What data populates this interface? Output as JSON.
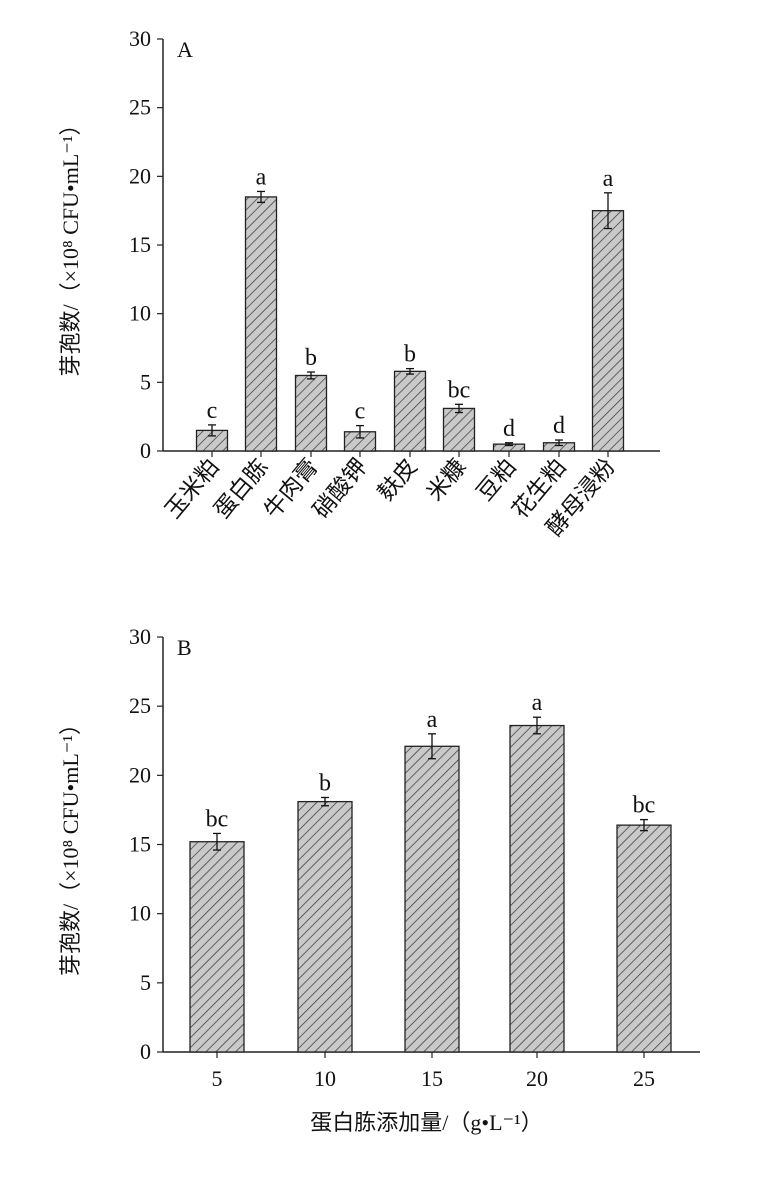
{
  "chart_data": [
    {
      "type": "bar",
      "panel_label": "A",
      "ylabel": "芽孢数/（×10⁸ CFU•mL⁻¹）",
      "xlabel": "",
      "ylim": [
        0,
        30
      ],
      "yticks": [
        0,
        5,
        10,
        15,
        20,
        25,
        30
      ],
      "categories": [
        "玉米粕",
        "蛋白胨",
        "牛肉膏",
        "硝酸钾",
        "麸皮",
        "米糠",
        "豆粕",
        "花生粕",
        "酵母浸粉"
      ],
      "values": [
        1.5,
        18.5,
        5.5,
        1.4,
        5.8,
        3.1,
        0.5,
        0.6,
        17.5
      ],
      "errors": [
        0.4,
        0.4,
        0.25,
        0.45,
        0.2,
        0.3,
        0.1,
        0.2,
        1.3
      ],
      "significance": [
        "c",
        "a",
        "b",
        "c",
        "b",
        "bc",
        "d",
        "d",
        "a"
      ]
    },
    {
      "type": "bar",
      "panel_label": "B",
      "ylabel": "芽孢数/（×10⁸ CFU•mL⁻¹）",
      "xlabel": "蛋白胨添加量/（g•L⁻¹）",
      "ylim": [
        0,
        30
      ],
      "yticks": [
        0,
        5,
        10,
        15,
        20,
        25,
        30
      ],
      "categories": [
        "5",
        "10",
        "15",
        "20",
        "25"
      ],
      "values": [
        15.2,
        18.1,
        22.1,
        23.6,
        16.4
      ],
      "errors": [
        0.6,
        0.3,
        0.9,
        0.6,
        0.4
      ],
      "significance": [
        "bc",
        "b",
        "a",
        "a",
        "bc"
      ]
    }
  ]
}
